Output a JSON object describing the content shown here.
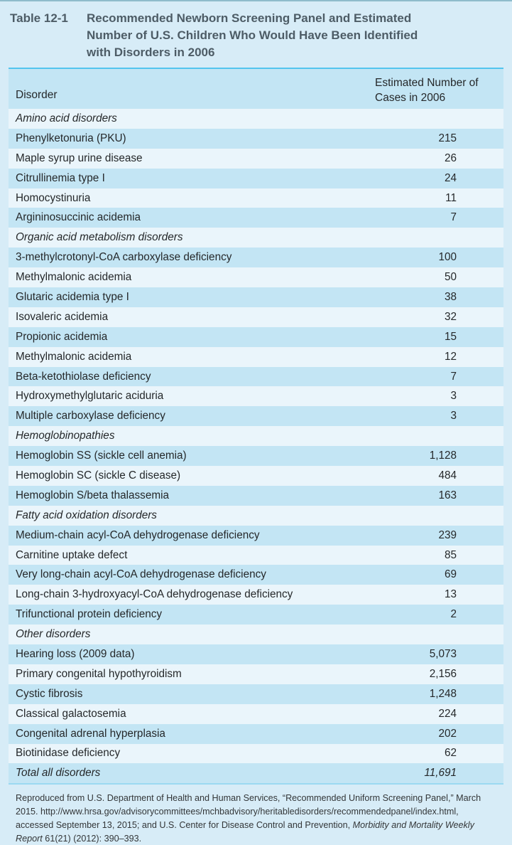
{
  "header": {
    "label": "Table 12-1",
    "title": "Recommended Newborn Screening Panel and Estimated\nNumber of U.S. Children Who Would Have Been Identified\nwith Disorders in 2006"
  },
  "table": {
    "columns": {
      "disorder": "Disorder",
      "cases": "Estimated Number of\nCases in 2006"
    },
    "rows": [
      {
        "type": "section",
        "label": "Amino acid disorders"
      },
      {
        "type": "data",
        "label": "Phenylketonuria (PKU)",
        "value": "215"
      },
      {
        "type": "data",
        "label": "Maple syrup urine disease",
        "value": "26"
      },
      {
        "type": "data",
        "label": "Citrullinemia type I",
        "value": "24"
      },
      {
        "type": "data",
        "label": "Homocystinuria",
        "value": "11"
      },
      {
        "type": "data",
        "label": "Argininosuccinic acidemia",
        "value": "7"
      },
      {
        "type": "section",
        "label": "Organic acid metabolism disorders"
      },
      {
        "type": "data",
        "label": "3-methylcrotonyl-CoA carboxylase deficiency",
        "value": "100"
      },
      {
        "type": "data",
        "label": "Methylmalonic acidemia",
        "value": "50"
      },
      {
        "type": "data",
        "label": "Glutaric acidemia type I",
        "value": "38"
      },
      {
        "type": "data",
        "label": "Isovaleric acidemia",
        "value": "32"
      },
      {
        "type": "data",
        "label": "Propionic acidemia",
        "value": "15"
      },
      {
        "type": "data",
        "label": "Methylmalonic acidemia",
        "value": "12"
      },
      {
        "type": "data",
        "label": "Beta-ketothiolase deficiency",
        "value": "7"
      },
      {
        "type": "data",
        "label": "Hydroxymethylglutaric aciduria",
        "value": "3"
      },
      {
        "type": "data",
        "label": "Multiple carboxylase deficiency",
        "value": "3"
      },
      {
        "type": "section",
        "label": "Hemoglobinopathies"
      },
      {
        "type": "data",
        "label": "Hemoglobin SS (sickle cell anemia)",
        "value": "1,128"
      },
      {
        "type": "data",
        "label": "Hemoglobin SC (sickle C disease)",
        "value": "484"
      },
      {
        "type": "data",
        "label": "Hemoglobin S/beta thalassemia",
        "value": "163"
      },
      {
        "type": "section",
        "label": "Fatty acid oxidation disorders"
      },
      {
        "type": "data",
        "label": "Medium-chain acyl-CoA dehydrogenase deficiency",
        "value": "239"
      },
      {
        "type": "data",
        "label": "Carnitine uptake defect",
        "value": "85"
      },
      {
        "type": "data",
        "label": "Very long-chain acyl-CoA dehydrogenase deficiency",
        "value": "69"
      },
      {
        "type": "data",
        "label": "Long-chain 3-hydroxyacyl-CoA dehydrogenase deficiency",
        "value": "13"
      },
      {
        "type": "data",
        "label": "Trifunctional protein deficiency",
        "value": "2"
      },
      {
        "type": "section",
        "label": "Other disorders"
      },
      {
        "type": "data",
        "label": "Hearing loss (2009 data)",
        "value": "5,073"
      },
      {
        "type": "data",
        "label": "Primary congenital hypothyroidism",
        "value": "2,156"
      },
      {
        "type": "data",
        "label": "Cystic fibrosis",
        "value": "1,248"
      },
      {
        "type": "data",
        "label": "Classical galactosemia",
        "value": "224"
      },
      {
        "type": "data",
        "label": "Congenital adrenal hyperplasia",
        "value": "202"
      },
      {
        "type": "data",
        "label": "Biotinidase deficiency",
        "value": "62"
      },
      {
        "type": "total",
        "label": "Total all disorders",
        "value": "11,691"
      }
    ]
  },
  "footnote": {
    "part1": "Reproduced from U.S. Department of Health and Human Services, “Recommended Uniform Screening Panel,” March\n2015. http://www.hrsa.gov/advisorycommittees/mchbadvisory/heritabledisorders/recommendedpanel/index.html,\naccessed  September 13, 2015; and U.S. Center for Disease Control and Prevention, ",
    "italic": "Morbidity and Mortality Weekly\nReport",
    "part2": " 61(21) (2012): 390–393."
  },
  "colors": {
    "page_bg": "#d7ecf7",
    "row_dark": "#c3e5f4",
    "row_light": "#eaf5fb",
    "rule_cyan": "#53c5ee",
    "rule_cyan_light": "#9bd9f1",
    "title_text": "#4d5c66",
    "body_text": "#25282a",
    "footnote_text": "#333638",
    "top_edge": "#8fbccb"
  }
}
